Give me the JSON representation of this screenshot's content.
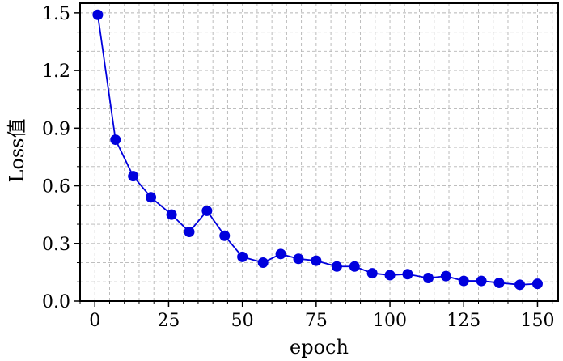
{
  "chart_data": {
    "type": "line",
    "xlabel": "epoch",
    "ylabel": "Loss值",
    "xlim": [
      -5,
      157
    ],
    "ylim": [
      0,
      1.55
    ],
    "x_ticks": [
      0,
      25,
      50,
      75,
      100,
      125,
      150
    ],
    "x_tick_labels": [
      "0",
      "25",
      "50",
      "75",
      "100",
      "125",
      "150"
    ],
    "x_minor_step": 5,
    "y_ticks": [
      0,
      0.3,
      0.6,
      0.9,
      1.2,
      1.5
    ],
    "y_tick_labels": [
      "0.0",
      "0.3",
      "0.6",
      "0.9",
      "1.2",
      "1.5"
    ],
    "y_minor_step": 0.1,
    "grid": true,
    "legend": "none",
    "series": [
      {
        "color": "#0000dd",
        "marker": "circle",
        "x": [
          1,
          7,
          13,
          19,
          26,
          32,
          38,
          44,
          50,
          57,
          63,
          69,
          75,
          82,
          88,
          94,
          100,
          106,
          113,
          119,
          125,
          131,
          137,
          144,
          150
        ],
        "y": [
          1.49,
          0.84,
          0.65,
          0.54,
          0.45,
          0.36,
          0.47,
          0.34,
          0.23,
          0.2,
          0.245,
          0.22,
          0.21,
          0.18,
          0.18,
          0.145,
          0.135,
          0.14,
          0.12,
          0.13,
          0.105,
          0.105,
          0.095,
          0.085,
          0.09
        ]
      }
    ]
  }
}
